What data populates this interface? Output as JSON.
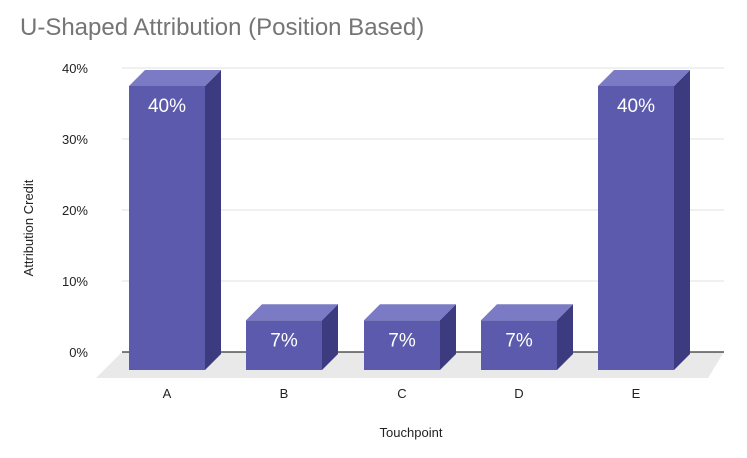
{
  "chart_data": {
    "type": "bar",
    "title": "U-Shaped Attribution (Position Based)",
    "categories": [
      "A",
      "B",
      "C",
      "D",
      "E"
    ],
    "values": [
      40,
      7,
      7,
      7,
      40
    ],
    "data_labels": [
      "40%",
      "7%",
      "7%",
      "7%",
      "40%"
    ],
    "xlabel": "Touchpoint",
    "ylabel": "Attribution Credit",
    "ylim": [
      0,
      40
    ],
    "yticks": [
      0,
      10,
      20,
      30,
      40
    ],
    "ytick_labels": [
      "0%",
      "10%",
      "20%",
      "30%",
      "40%"
    ],
    "grid": true,
    "legend": "none",
    "style": "3d",
    "colors": {
      "bar_front": "#5b5aac",
      "bar_top": "#7b7ac4",
      "bar_side": "#3d3b80",
      "floor": "#e9e9e9",
      "grid": "#e0e0e0",
      "axis": "#333333"
    }
  }
}
